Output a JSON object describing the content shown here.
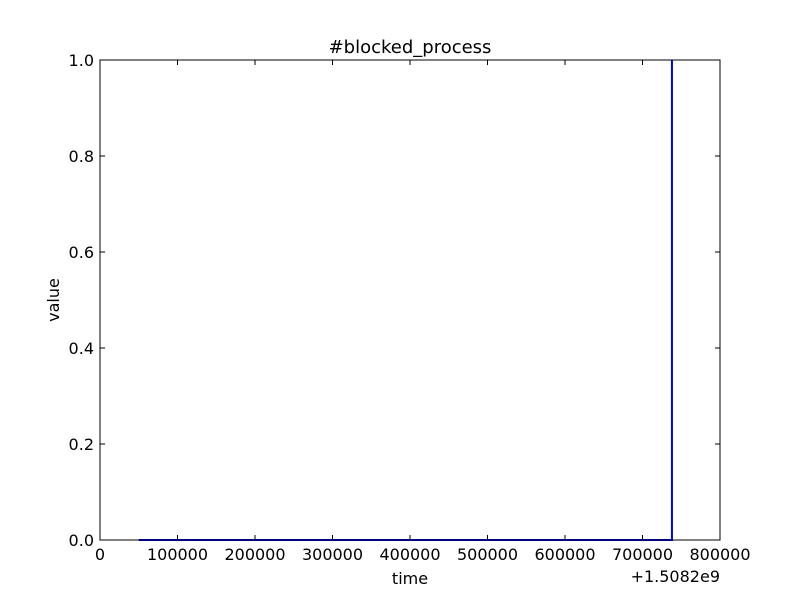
{
  "chart_data": {
    "type": "line",
    "title": "#blocked_process",
    "xlabel": "time",
    "ylabel": "value",
    "x_offset_label": "+1.5082e9",
    "xlim": [
      0,
      800000
    ],
    "ylim": [
      0.0,
      1.0
    ],
    "x_ticks": [
      0,
      100000,
      200000,
      300000,
      400000,
      500000,
      600000,
      700000,
      800000
    ],
    "x_tick_labels": [
      "0",
      "100000",
      "200000",
      "300000",
      "400000",
      "500000",
      "600000",
      "700000",
      "800000"
    ],
    "y_ticks": [
      0.0,
      0.2,
      0.4,
      0.6,
      0.8,
      1.0
    ],
    "y_tick_labels": [
      "0.0",
      "0.2",
      "0.4",
      "0.6",
      "0.8",
      "1.0"
    ],
    "grid": false,
    "series": [
      {
        "color": "#0000ff",
        "x": [
          50000,
          738000,
          738000,
          738000
        ],
        "y": [
          0,
          0,
          1,
          0
        ]
      }
    ]
  }
}
